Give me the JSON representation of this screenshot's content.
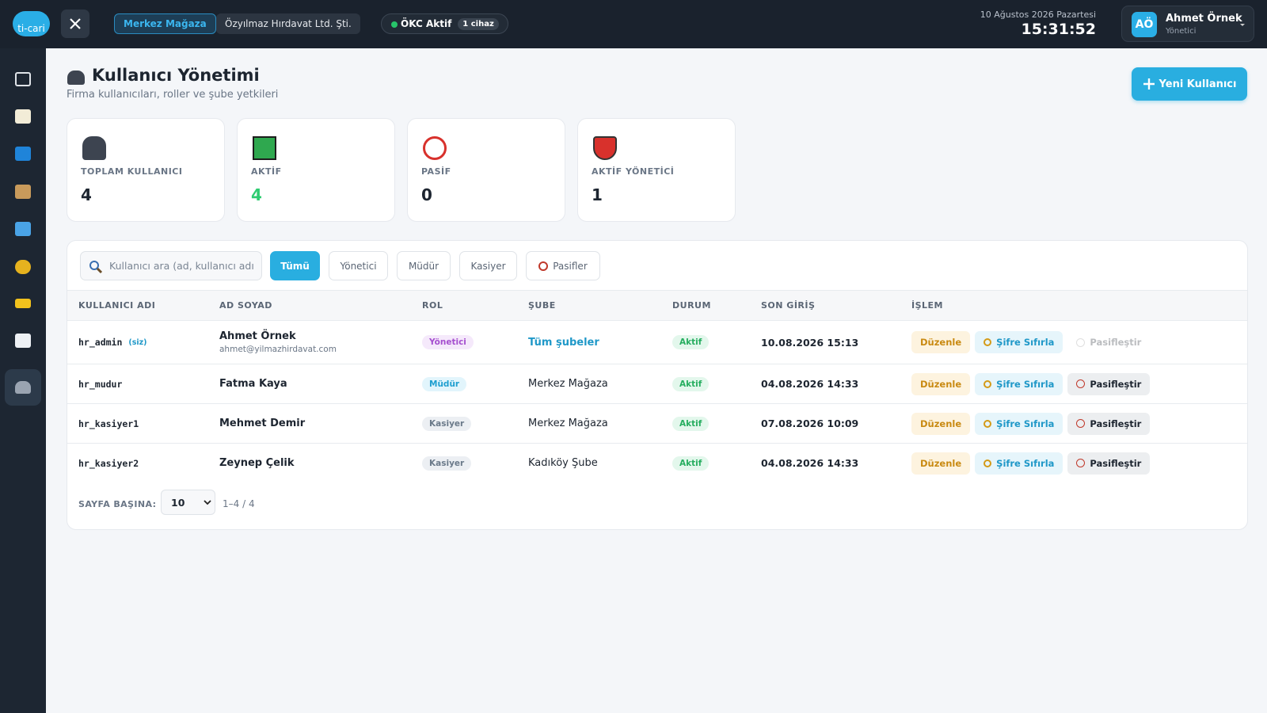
{
  "header": {
    "logo": "ti-cari",
    "store": "Merkez Mağaza",
    "company": "Özyılmaz Hırdavat Ltd. Şti.",
    "okc": "ÖKC Aktif",
    "okc_devices": "1 cihaz",
    "date": "10 Ağustos 2026 Pazartesi",
    "time": "15:31:52",
    "user_initials": "AÖ",
    "user_name": "Ahmet Örnek",
    "user_role": "Yönetici"
  },
  "page": {
    "title": "Kullanıcı Yönetimi",
    "subtitle": "Firma kullanıcıları, roller ve şube yetkileri",
    "new_button": "Yeni Kullanıcı"
  },
  "stats": [
    {
      "label": "TOPLAM KULLANICI",
      "value": 4
    },
    {
      "label": "AKTİF",
      "value": 4
    },
    {
      "label": "PASİF",
      "value": 0
    },
    {
      "label": "AKTİF YÖNETİCİ",
      "value": 1
    }
  ],
  "filters": {
    "search_placeholder": "Kullanıcı ara (ad, kullanıcı adı",
    "buttons": [
      "Tümü",
      "Yönetici",
      "Müdür",
      "Kasiyer",
      "Pasifler"
    ]
  },
  "table": {
    "columns": [
      "KULLANICI ADI",
      "AD SOYAD",
      "ROL",
      "ŞUBE",
      "DURUM",
      "SON GİRİŞ",
      "İŞLEM"
    ],
    "rows": [
      {
        "username": "hr_admin",
        "self_tag": "(siz)",
        "name": "Ahmet Örnek",
        "email": "ahmet@yilmazhirdavat.com",
        "role": "Yönetici",
        "branch": "Tüm şubeler",
        "status": "Aktif",
        "last_login": "10.08.2026 15:13",
        "actions": [
          "Düzenle",
          "Şifre Sıfırla",
          "Pasifleştir"
        ]
      },
      {
        "username": "hr_mudur",
        "name": "Fatma Kaya",
        "role": "Müdür",
        "branch": "Merkez Mağaza",
        "status": "Aktif",
        "last_login": "04.08.2026 14:33",
        "actions": [
          "Düzenle",
          "Şifre Sıfırla",
          "Pasifleştir"
        ]
      },
      {
        "username": "hr_kasiyer1",
        "name": "Mehmet Demir",
        "role": "Kasiyer",
        "branch": "Merkez Mağaza",
        "status": "Aktif",
        "last_login": "07.08.2026 10:09",
        "actions": [
          "Düzenle",
          "Şifre Sıfırla",
          "Pasifleştir"
        ]
      },
      {
        "username": "hr_kasiyer2",
        "name": "Zeynep Çelik",
        "role": "Kasiyer",
        "branch": "Kadıköy Şube",
        "status": "Aktif",
        "last_login": "04.08.2026 14:33",
        "actions": [
          "Düzenle",
          "Şifre Sıfırla",
          "Pasifleştir"
        ]
      }
    ]
  },
  "pagination": {
    "label": "SAYFA BAŞINA:",
    "per_page": 10,
    "range": "1–4 / 4"
  }
}
